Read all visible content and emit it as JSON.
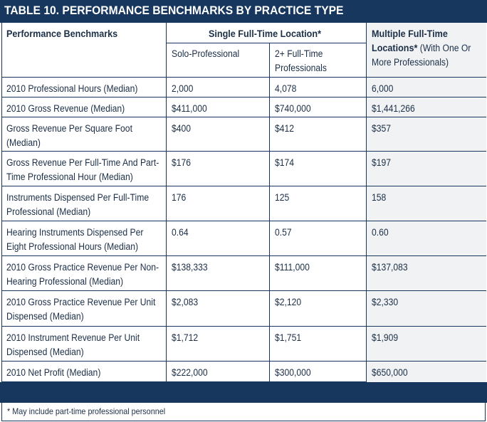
{
  "title": "TABLE 10. PERFORMANCE BENCHMARKS BY PRACTICE TYPE",
  "headers": {
    "benchmarks": "Performance Benchmarks",
    "single_group": "Single Full-Time Location*",
    "solo": "Solo-Professional",
    "two_plus_line1": "2+ Full-Time",
    "two_plus_line2": "Professionals",
    "multiple_line1": "Multiple Full-Time",
    "multiple_line2_bold": "Locations*",
    "multiple_line2_rest": " (With One Or",
    "multiple_line3": "More Professionals)"
  },
  "rows": [
    {
      "label": [
        "2010 Professional Hours (Median)"
      ],
      "solo": "2,000",
      "two_plus": "4,078",
      "multiple": "6,000"
    },
    {
      "label": [
        "2010 Gross Revenue (Median)"
      ],
      "solo": "$411,000",
      "two_plus": "$740,000",
      "multiple": "$1,441,266"
    },
    {
      "label": [
        "Gross Revenue Per Square Foot",
        "(Median)"
      ],
      "solo": "$400",
      "two_plus": "$412",
      "multiple": "$357"
    },
    {
      "label": [
        "Gross Revenue Per Full-Time And Part-",
        "Time Professional Hour (Median)"
      ],
      "solo": "$176",
      "two_plus": "$174",
      "multiple": "$197"
    },
    {
      "label": [
        "Instruments Dispensed Per Full-Time",
        "Professional (Median)"
      ],
      "solo": "176",
      "two_plus": "125",
      "multiple": "158"
    },
    {
      "label": [
        "Hearing Instruments Dispensed Per",
        "Eight Professional Hours (Median)"
      ],
      "solo": "0.64",
      "two_plus": "0.57",
      "multiple": "0.60"
    },
    {
      "label": [
        "2010 Gross Practice Revenue Per Non-",
        "Hearing Professional (Median)"
      ],
      "solo": "$138,333",
      "two_plus": "$111,000",
      "multiple": "$137,083"
    },
    {
      "label": [
        "2010 Gross Practice Revenue Per Unit",
        "Dispensed (Median)"
      ],
      "solo": "$2,083",
      "two_plus": "$2,120",
      "multiple": "$2,330"
    },
    {
      "label": [
        "2010 Instrument Revenue Per Unit",
        "Dispensed (Median)"
      ],
      "solo": "$1,712",
      "two_plus": "$1,751",
      "multiple": "$1,909"
    },
    {
      "label": [
        "2010 Net Profit (Median)"
      ],
      "solo": "$222,000",
      "two_plus": "$300,000",
      "multiple": "$650,000"
    }
  ],
  "footnote": "* May include part-time professional personnel",
  "colors": {
    "navy": "#17375e",
    "text": "#1c2f47",
    "shade": "#f0f2f4"
  }
}
